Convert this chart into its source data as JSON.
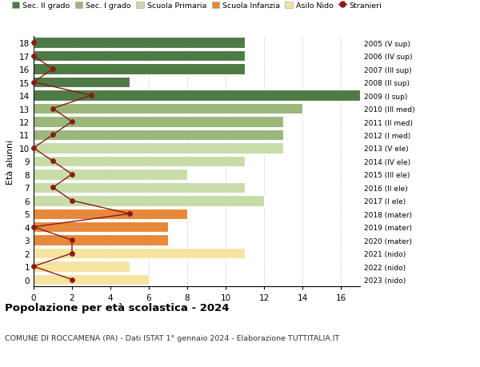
{
  "ages": [
    0,
    1,
    2,
    3,
    4,
    5,
    6,
    7,
    8,
    9,
    10,
    11,
    12,
    13,
    14,
    15,
    16,
    17,
    18
  ],
  "years": [
    "2023 (nido)",
    "2022 (nido)",
    "2021 (nido)",
    "2020 (mater)",
    "2019 (mater)",
    "2018 (mater)",
    "2017 (I ele)",
    "2016 (II ele)",
    "2015 (III ele)",
    "2014 (IV ele)",
    "2013 (V ele)",
    "2012 (I med)",
    "2011 (II med)",
    "2010 (III med)",
    "2009 (I sup)",
    "2008 (II sup)",
    "2007 (III sup)",
    "2006 (IV sup)",
    "2005 (V sup)"
  ],
  "bar_values": [
    6,
    5,
    11,
    7,
    7,
    8,
    12,
    11,
    8,
    11,
    13,
    13,
    13,
    14,
    17,
    5,
    11,
    11,
    11
  ],
  "stranieri": [
    2,
    0,
    2,
    2,
    0,
    5,
    2,
    1,
    2,
    1,
    0,
    1,
    2,
    1,
    3,
    0,
    1,
    0,
    0
  ],
  "bar_colors": [
    "#f5e4a0",
    "#f5e4a0",
    "#f5e4a0",
    "#e8883a",
    "#e8883a",
    "#e8883a",
    "#c8dca8",
    "#c8dca8",
    "#c8dca8",
    "#c8dca8",
    "#c8dca8",
    "#9ab87a",
    "#9ab87a",
    "#9ab87a",
    "#4e7a45",
    "#4e7a45",
    "#4e7a45",
    "#4e7a45",
    "#4e7a45"
  ],
  "legend_labels": [
    "Sec. II grado",
    "Sec. I grado",
    "Scuola Primaria",
    "Scuola Infanzia",
    "Asilo Nido",
    "Stranieri"
  ],
  "legend_colors": [
    "#4e7a45",
    "#9ab87a",
    "#c8dca8",
    "#e8883a",
    "#f5e4a0",
    "#8b1a1a"
  ],
  "title": "Popolazione per età scolastica - 2024",
  "subtitle": "COMUNE DI ROCCAMENA (PA) - Dati ISTAT 1° gennaio 2024 - Elaborazione TUTTITALIA.IT",
  "ylabel_left": "Età alunni",
  "xlim": [
    0,
    17
  ],
  "xticks": [
    0,
    2,
    4,
    6,
    8,
    10,
    12,
    14,
    16
  ],
  "stranieri_color": "#8b1a1a",
  "bg_color": "#ffffff",
  "grid_color": "#cccccc"
}
